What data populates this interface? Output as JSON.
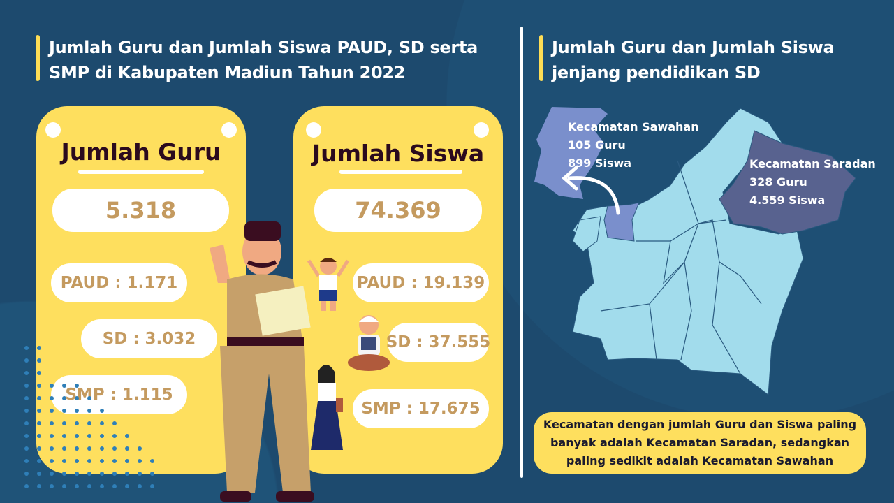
{
  "left": {
    "title_line1": "Jumlah Guru dan Jumlah Siswa PAUD, SD serta",
    "title_line2": "SMP di Kabupaten Madiun Tahun 2022",
    "guru": {
      "title": "Jumlah Guru",
      "total": "5.318",
      "paud": "PAUD : 1.171",
      "sd": "SD : 3.032",
      "smp": "SMP : 1.115"
    },
    "siswa": {
      "title": "Jumlah Siswa",
      "total": "74.369",
      "paud": "PAUD : 19.139",
      "sd": "SD : 37.555",
      "smp": "SMP : 17.675"
    }
  },
  "right": {
    "title_line1": "Jumlah Guru dan Jumlah Siswa",
    "title_line2": "jenjang pendidikan SD",
    "sawahan": {
      "name": "Kecamatan Sawahan",
      "guru": "105 Guru",
      "siswa": "899 Siswa"
    },
    "saradan": {
      "name": "Kecamatan Saradan",
      "guru": "328 Guru",
      "siswa": "4.559 Siswa"
    },
    "note": "Kecamatan dengan jumlah Guru dan Siswa paling banyak adalah Kecamatan Saradan, sedangkan paling sedikit adalah Kecamatan Sawahan"
  },
  "colors": {
    "background": "#1d4a6e",
    "card": "#fedf5e",
    "number": "#c49a5f",
    "map_base": "#a2dcec",
    "sawahan": "#7a8fcc",
    "saradan": "#58628f"
  }
}
